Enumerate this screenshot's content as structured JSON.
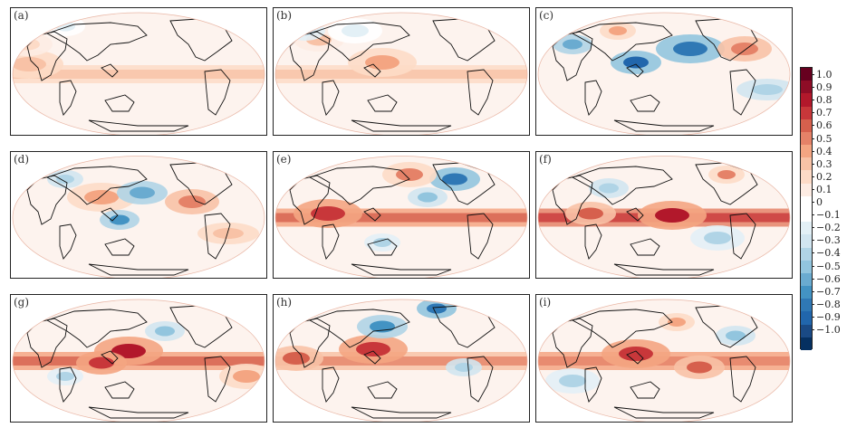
{
  "figure": {
    "panels": [
      {
        "label": "(a)",
        "blobs": [
          [
            "eq",
            0.38
          ],
          [
            "r",
            20,
            62,
            0.35,
            "a"
          ],
          [
            "r",
            18,
            40,
            0.25,
            "b"
          ],
          [
            "b",
            60,
            20,
            -0.15,
            "c"
          ]
        ]
      },
      {
        "label": "(b)",
        "blobs": [
          [
            "eq",
            0.35
          ],
          [
            "r",
            120,
            60,
            0.45,
            "a"
          ],
          [
            "r",
            50,
            35,
            0.3,
            "b"
          ],
          [
            "b",
            35,
            25,
            -0.2,
            "c"
          ],
          [
            "b",
            90,
            25,
            -0.15,
            "d"
          ]
        ]
      },
      {
        "label": "(c)",
        "blobs": [
          [
            "b",
            170,
            45,
            -0.75,
            "a"
          ],
          [
            "b",
            110,
            60,
            -0.8,
            "b"
          ],
          [
            "b",
            40,
            40,
            -0.55,
            "c"
          ],
          [
            "r",
            230,
            45,
            0.55,
            "d"
          ],
          [
            "r",
            90,
            25,
            0.4,
            "e"
          ],
          [
            "b",
            255,
            90,
            -0.35,
            "f"
          ]
        ]
      },
      {
        "label": "(d)",
        "blobs": [
          [
            "r",
            100,
            50,
            0.45,
            "a"
          ],
          [
            "b",
            145,
            45,
            -0.55,
            "b"
          ],
          [
            "b",
            120,
            75,
            -0.65,
            "c"
          ],
          [
            "r",
            200,
            55,
            0.55,
            "d"
          ],
          [
            "b",
            60,
            30,
            -0.35,
            "e"
          ],
          [
            "r",
            240,
            90,
            0.35,
            "f"
          ]
        ]
      },
      {
        "label": "(e)",
        "blobs": [
          [
            "eq",
            0.65
          ],
          [
            "r",
            60,
            68,
            0.75,
            "a"
          ],
          [
            "b",
            200,
            30,
            -0.7,
            "b"
          ],
          [
            "b",
            170,
            50,
            -0.45,
            "c"
          ],
          [
            "r",
            150,
            25,
            0.5,
            "d"
          ],
          [
            "b",
            120,
            100,
            -0.3,
            "e"
          ]
        ]
      },
      {
        "label": "(f)",
        "blobs": [
          [
            "eq",
            0.72
          ],
          [
            "r",
            150,
            70,
            0.85,
            "a"
          ],
          [
            "r",
            60,
            68,
            0.65,
            "b"
          ],
          [
            "b",
            80,
            40,
            -0.35,
            "c"
          ],
          [
            "b",
            200,
            95,
            -0.3,
            "d"
          ],
          [
            "r",
            210,
            25,
            0.5,
            "e"
          ]
        ]
      },
      {
        "label": "(g)",
        "blobs": [
          [
            "eq",
            0.6
          ],
          [
            "r",
            130,
            62,
            0.8,
            "a"
          ],
          [
            "r",
            100,
            75,
            0.7,
            "b"
          ],
          [
            "b",
            170,
            40,
            -0.4,
            "c"
          ],
          [
            "r",
            260,
            90,
            0.45,
            "d"
          ],
          [
            "b",
            60,
            90,
            -0.3,
            "e"
          ]
        ]
      },
      {
        "label": "(h)",
        "blobs": [
          [
            "eq",
            0.5
          ],
          [
            "r",
            110,
            60,
            0.7,
            "a"
          ],
          [
            "b",
            120,
            35,
            -0.65,
            "b"
          ],
          [
            "b",
            180,
            15,
            -0.7,
            "c"
          ],
          [
            "r",
            25,
            70,
            0.6,
            "d"
          ],
          [
            "b",
            210,
            80,
            -0.35,
            "e"
          ]
        ]
      },
      {
        "label": "(i)",
        "blobs": [
          [
            "eq",
            0.55
          ],
          [
            "r",
            110,
            65,
            0.7,
            "a"
          ],
          [
            "r",
            180,
            80,
            0.65,
            "b"
          ],
          [
            "b",
            220,
            45,
            -0.4,
            "c"
          ],
          [
            "b",
            40,
            95,
            -0.3,
            "d"
          ],
          [
            "r",
            155,
            30,
            0.45,
            "e"
          ]
        ]
      }
    ],
    "colorbar": {
      "ticks": [
        "1.0",
        "0.9",
        "0.8",
        "0.7",
        "0.6",
        "0.5",
        "0.4",
        "0.3",
        "0.2",
        "0.1",
        "0",
        "−0.1",
        "−0.2",
        "−0.3",
        "−0.4",
        "−0.5",
        "−0.6",
        "−0.7",
        "−0.8",
        "−0.9",
        "−1.0"
      ],
      "colors": [
        "#67001f",
        "#8e0d26",
        "#b2182b",
        "#c8373a",
        "#d6604d",
        "#e58268",
        "#f4a582",
        "#f8c2a6",
        "#fddbc7",
        "#fdece3",
        "#ffffff",
        "#ffffff",
        "#e3f0f6",
        "#d1e5f0",
        "#b0d4e6",
        "#92c5de",
        "#6aabd0",
        "#4393c3",
        "#2f78b5",
        "#2166ac",
        "#1a4a85",
        "#053061"
      ]
    }
  }
}
